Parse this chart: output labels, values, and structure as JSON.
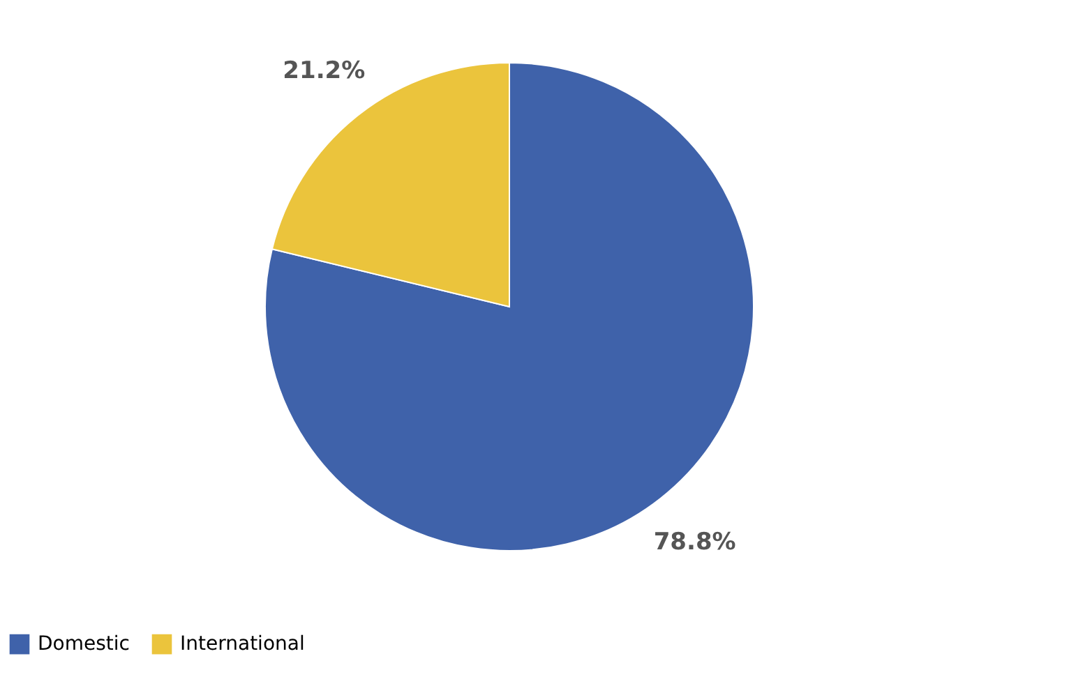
{
  "chart_data": {
    "type": "pie",
    "categories": [
      "Domestic",
      "International"
    ],
    "values": [
      78.8,
      21.2
    ],
    "colors": [
      "#3f62aa",
      "#ebc43c"
    ],
    "value_labels": [
      "78.8%",
      "21.2%"
    ],
    "legend": "bottom"
  }
}
